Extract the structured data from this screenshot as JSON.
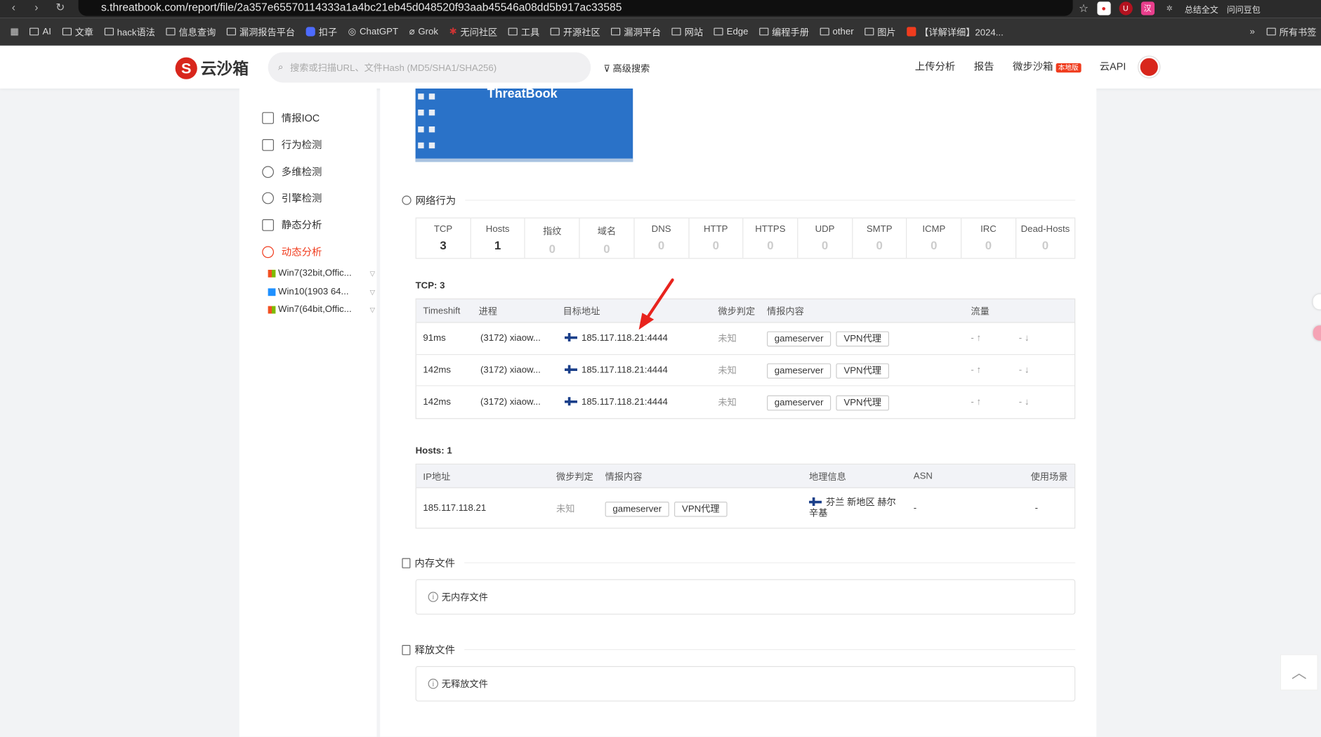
{
  "browser": {
    "url": "s.threatbook.com/report/file/2a357e65570114333a1a4bc21eb45d048520f93aab45546a08dd5b917ac33585",
    "right_items": [
      "总结全文",
      "问问豆包"
    ],
    "bookmarks": [
      "AI",
      "文章",
      "hack语法",
      "信息查询",
      "漏洞报告平台",
      "扣子",
      "ChatGPT",
      "Grok",
      "无问社区",
      "工具",
      "开源社区",
      "漏洞平台",
      "网站",
      "Edge",
      "编程手册",
      "other",
      "图片",
      "【详解详细】2024...",
      "所有书签"
    ]
  },
  "header": {
    "logo": "云沙箱",
    "search_placeholder": "搜索或扫描URL、文件Hash (MD5/SHA1/SHA256)",
    "advanced_search": "高级搜索",
    "nav": [
      "上传分析",
      "报告",
      "微步沙箱",
      "云API"
    ],
    "badge": "本地版",
    "brand_color": "#d8261c"
  },
  "sidebar": {
    "items": [
      {
        "label": "情报IOC"
      },
      {
        "label": "行为检测"
      },
      {
        "label": "多维检测"
      },
      {
        "label": "引擎检测"
      },
      {
        "label": "静态分析"
      },
      {
        "label": "动态分析",
        "active": true
      }
    ],
    "environments": [
      "Win7(32bit,Offic...",
      "Win10(1903 64...",
      "Win7(64bit,Offic..."
    ]
  },
  "screenshot": {
    "title": "ThreatBook"
  },
  "network": {
    "title": "网络行为",
    "stats": [
      {
        "label": "TCP",
        "value": "3"
      },
      {
        "label": "Hosts",
        "value": "1"
      },
      {
        "label": "指纹",
        "value": "0"
      },
      {
        "label": "域名",
        "value": "0"
      },
      {
        "label": "DNS",
        "value": "0"
      },
      {
        "label": "HTTP",
        "value": "0"
      },
      {
        "label": "HTTPS",
        "value": "0"
      },
      {
        "label": "UDP",
        "value": "0"
      },
      {
        "label": "SMTP",
        "value": "0"
      },
      {
        "label": "ICMP",
        "value": "0"
      },
      {
        "label": "IRC",
        "value": "0"
      },
      {
        "label": "Dead-Hosts",
        "value": "0"
      }
    ],
    "tcp": {
      "label": "TCP: 3",
      "columns": [
        "Timeshift",
        "进程",
        "目标地址",
        "微步判定",
        "情报内容",
        "流量"
      ],
      "rows": [
        {
          "time": "91ms",
          "process": "(3172)  xiaow...",
          "dest": "185.117.118.21:4444",
          "verdict": "未知",
          "tags": [
            "gameserver",
            "VPN代理"
          ],
          "up": "- ↑",
          "down": "- ↓"
        },
        {
          "time": "142ms",
          "process": "(3172)  xiaow...",
          "dest": "185.117.118.21:4444",
          "verdict": "未知",
          "tags": [
            "gameserver",
            "VPN代理"
          ],
          "up": "- ↑",
          "down": "- ↓"
        },
        {
          "time": "142ms",
          "process": "(3172)  xiaow...",
          "dest": "185.117.118.21:4444",
          "verdict": "未知",
          "tags": [
            "gameserver",
            "VPN代理"
          ],
          "up": "- ↑",
          "down": "- ↓"
        }
      ]
    },
    "hosts": {
      "label": "Hosts: 1",
      "columns": [
        "IP地址",
        "微步判定",
        "情报内容",
        "地理信息",
        "ASN",
        "使用场景"
      ],
      "rows": [
        {
          "ip": "185.117.118.21",
          "verdict": "未知",
          "tags": [
            "gameserver",
            "VPN代理"
          ],
          "geo_line1": "芬兰 新地区 赫尔",
          "geo_line2": "辛基",
          "asn": "-",
          "usage": "-"
        }
      ]
    }
  },
  "memory_files": {
    "title": "内存文件",
    "empty": "无内存文件"
  },
  "released_files": {
    "title": "释放文件",
    "empty": "无释放文件"
  },
  "annotation": {
    "arrow_color": "#e8231d"
  }
}
